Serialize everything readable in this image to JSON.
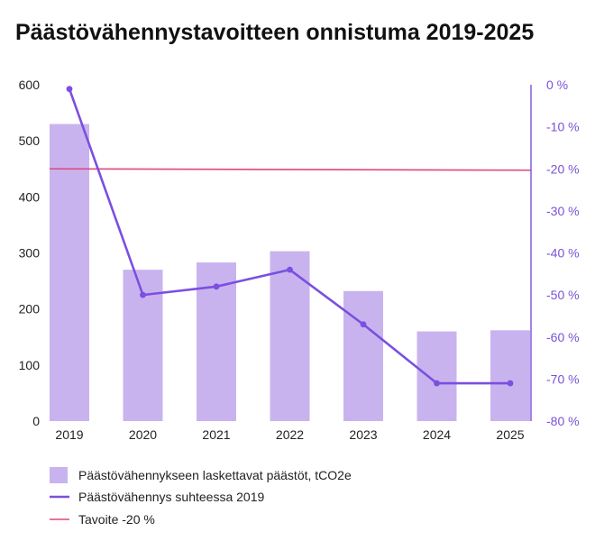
{
  "chart_data": {
    "type": "bar",
    "title": "Päästövähennystavoitteen onnistuma 2019-2025",
    "categories": [
      "2019",
      "2020",
      "2021",
      "2022",
      "2023",
      "2024",
      "2025"
    ],
    "series": [
      {
        "name": "Päästövähennykseen laskettavat päästöt, tCO2e",
        "type": "bar",
        "axis": "left",
        "color": "#c9b3ef",
        "values": [
          530,
          270,
          283,
          303,
          232,
          160,
          162
        ]
      },
      {
        "name": "Päästövähennys suhteessa 2019",
        "type": "line",
        "axis": "right",
        "color": "#7b4fe0",
        "values": [
          -1,
          -50,
          -48,
          -44,
          -57,
          -71,
          -71
        ]
      },
      {
        "name": "Tavoite -20 %",
        "type": "line",
        "axis": "right",
        "color": "#e0457b",
        "values": [
          -20,
          -20,
          -20,
          -20,
          -20,
          -20,
          -20
        ]
      }
    ],
    "y_left": {
      "range": [
        0,
        600
      ],
      "ticks": [
        0,
        100,
        200,
        300,
        400,
        500,
        600
      ],
      "tick_labels": [
        "0",
        "100",
        "200",
        "300",
        "400",
        "500",
        "600"
      ]
    },
    "y_right": {
      "range": [
        -80,
        0
      ],
      "ticks": [
        0,
        -10,
        -20,
        -30,
        -40,
        -50,
        -60,
        -70,
        -80
      ],
      "tick_labels": [
        "0 %",
        "-10 %",
        "-20 %",
        "-30 %",
        "-40 %",
        "-50 %",
        "-60 %",
        "-70 %",
        "-80 %"
      ],
      "color": "#7a52d6"
    },
    "grid": false,
    "legend_position": "bottom-left"
  }
}
